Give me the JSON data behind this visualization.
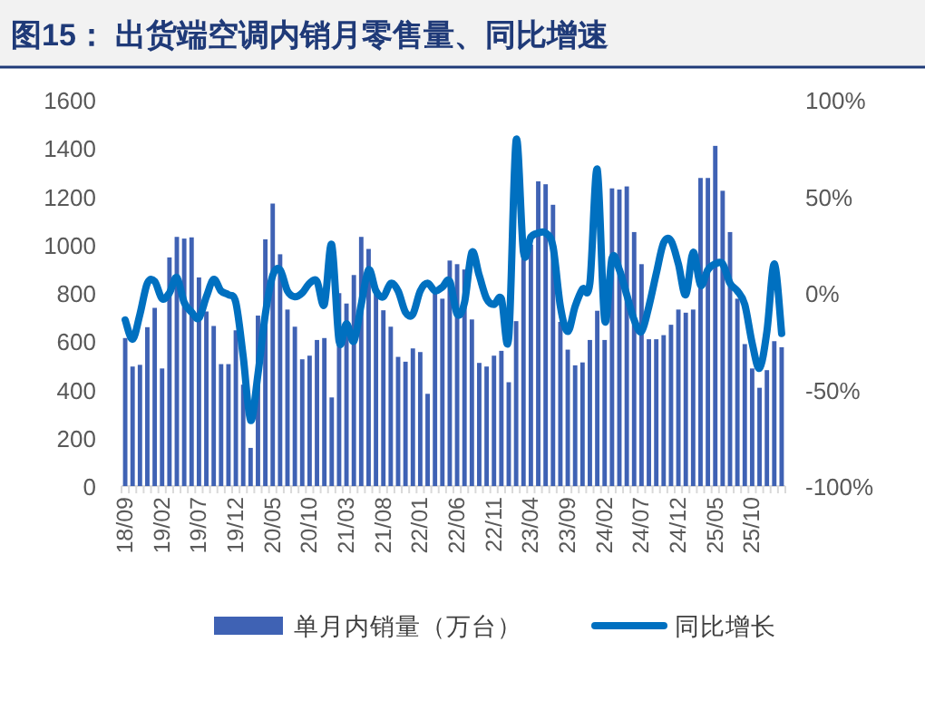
{
  "chart_data": {
    "type": "bar",
    "title": "图15：  出货端空调内销月零售量、同比增速",
    "categories": [
      "18/09",
      null,
      null,
      null,
      null,
      "19/02",
      null,
      null,
      null,
      null,
      "19/07",
      null,
      null,
      null,
      null,
      "19/12",
      null,
      null,
      null,
      null,
      "20/05",
      null,
      null,
      null,
      null,
      "20/10",
      null,
      null,
      null,
      null,
      "21/03",
      null,
      null,
      null,
      null,
      "21/08",
      null,
      null,
      null,
      null,
      "22/01",
      null,
      null,
      null,
      null,
      "22/06",
      null,
      null,
      null,
      null,
      "22/11",
      null,
      null,
      null,
      null,
      "23/04",
      null,
      null,
      null,
      null,
      "23/09",
      null,
      null,
      null,
      null,
      "24/02",
      null,
      null,
      null,
      null,
      "24/07",
      null,
      null,
      null,
      null,
      "24/12",
      null,
      null,
      null,
      null,
      "25/05",
      null,
      null,
      null,
      null,
      "25/10",
      null,
      null,
      null,
      null
    ],
    "series": [
      {
        "name": "单月内销量（万台）",
        "color": "#3f62b4",
        "values": [
          613,
          495,
          502,
          658,
          738,
          487,
          947,
          1032,
          1025,
          1030,
          864,
          723,
          663,
          505,
          505,
          645,
          420,
          158,
          706,
          1022,
          1170,
          960,
          731,
          660,
          525,
          540,
          605,
          613,
          367,
          799,
          756,
          874,
          1032,
          982,
          796,
          728,
          660,
          535,
          515,
          570,
          555,
          382,
          806,
          776,
          934,
          919,
          897,
          690,
          510,
          495,
          540,
          560,
          430,
          683,
          950,
          1000,
          1262,
          1250,
          1165,
          680,
          565,
          500,
          512,
          605,
          726,
          605,
          1233,
          1228,
          1241,
          1052,
          919,
          608,
          608,
          625,
          668,
          731,
          718,
          731,
          1276,
          1276,
          1409,
          1223,
          1052,
          776,
          588,
          487,
          407,
          480,
          600,
          575
        ]
      },
      {
        "name": "同比增长",
        "type": "line",
        "axis": "y2",
        "color": "#0070c0",
        "values": [
          -14,
          -24,
          -11,
          5,
          6,
          -3,
          0,
          8,
          -5,
          -10,
          -13,
          -2,
          7,
          1,
          -1,
          -5,
          -33,
          -66,
          -42,
          -11,
          9,
          12,
          1,
          -2,
          0,
          5,
          6,
          -6,
          25,
          -25,
          -16,
          -25,
          -6,
          12,
          1,
          -2,
          5,
          1,
          -10,
          -11,
          1,
          5,
          1,
          3,
          6,
          -11,
          -5,
          21,
          9,
          -3,
          -6,
          -3,
          -23,
          79,
          21,
          29,
          31,
          31,
          24,
          -7,
          -20,
          -7,
          2,
          5,
          64,
          -14,
          18,
          12,
          -1,
          -14,
          -20,
          -7,
          10,
          26,
          27,
          15,
          -1,
          21,
          4,
          12,
          15,
          15,
          5,
          1,
          -6,
          -26,
          -39,
          -20,
          15,
          -21
        ]
      }
    ],
    "ylim": [
      0,
      1600
    ],
    "yticks": [
      0,
      200,
      400,
      600,
      800,
      1000,
      1200,
      1400,
      1600
    ],
    "y2lim": [
      -100,
      100
    ],
    "y2ticks": [
      {
        "value": -100,
        "label": "-100%"
      },
      {
        "value": -50,
        "label": "-50%"
      },
      {
        "value": 0,
        "label": "0%"
      },
      {
        "value": 50,
        "label": "50%"
      },
      {
        "value": 100,
        "label": "100%"
      }
    ],
    "legend": "bottom"
  }
}
